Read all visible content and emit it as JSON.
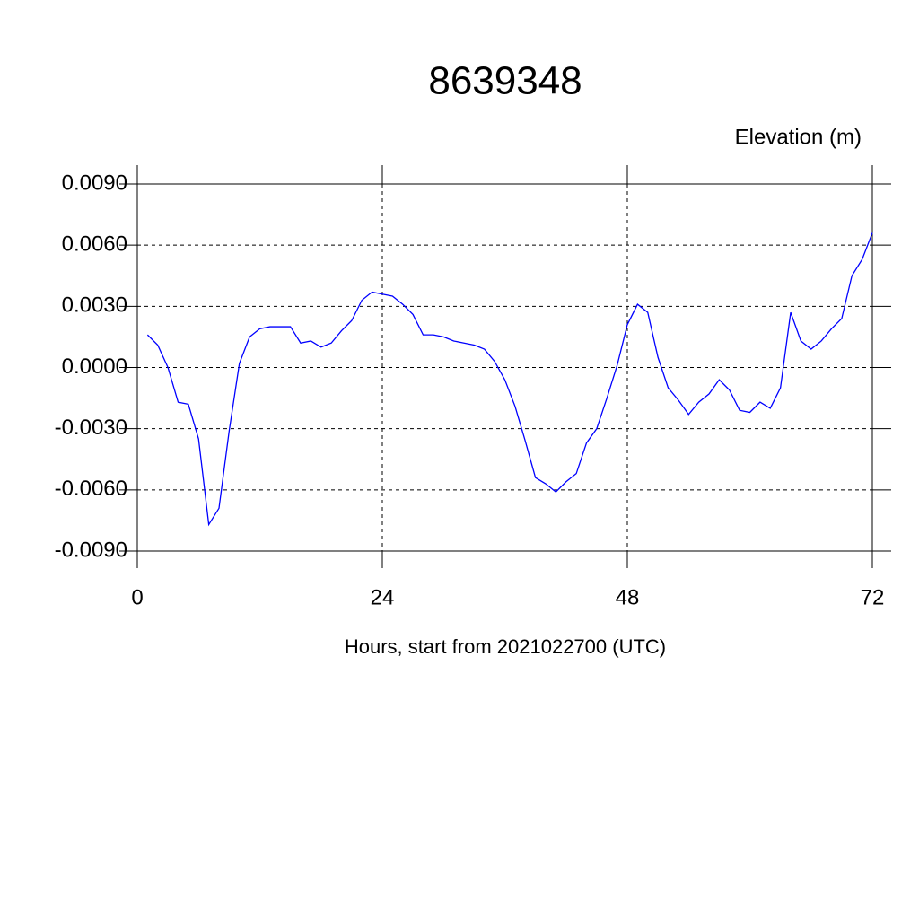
{
  "chart_data": {
    "type": "line",
    "title": "8639348",
    "subtitle": "Elevation (m)",
    "x_label": "Hours, start from 2021022700 (UTC)",
    "x": [
      1,
      2,
      3,
      4,
      5,
      6,
      7,
      8,
      9,
      10,
      11,
      12,
      13,
      14,
      15,
      16,
      17,
      18,
      19,
      20,
      21,
      22,
      23,
      24,
      25,
      26,
      27,
      28,
      29,
      30,
      31,
      32,
      33,
      34,
      35,
      36,
      37,
      38,
      39,
      40,
      41,
      42,
      43,
      44,
      45,
      46,
      47,
      48,
      49,
      50,
      51,
      52,
      53,
      54,
      55,
      56,
      57,
      58,
      59,
      60,
      61,
      62,
      63,
      64,
      65,
      66,
      67,
      68,
      69,
      70,
      71,
      72
    ],
    "series": [
      {
        "name": "Elevation",
        "color": "#0000ff",
        "values": [
          0.0016,
          0.0011,
          0.0,
          -0.0017,
          -0.0018,
          -0.0035,
          -0.0077,
          -0.0069,
          -0.0031,
          0.0002,
          0.0015,
          0.0019,
          0.002,
          0.002,
          0.002,
          0.0012,
          0.0013,
          0.001,
          0.0012,
          0.0018,
          0.0023,
          0.0033,
          0.0037,
          0.0036,
          0.0035,
          0.0031,
          0.0026,
          0.0016,
          0.0016,
          0.0015,
          0.0013,
          0.0012,
          0.0011,
          0.0009,
          0.0003,
          -0.0006,
          -0.0019,
          -0.0036,
          -0.0054,
          -0.0057,
          -0.0061,
          -0.0056,
          -0.0052,
          -0.0037,
          -0.003,
          -0.0015,
          0.0001,
          0.0021,
          0.0031,
          0.0027,
          0.0005,
          -0.001,
          -0.0016,
          -0.0023,
          -0.0017,
          -0.0013,
          -0.0006,
          -0.0011,
          -0.0021,
          -0.0022,
          -0.0017,
          -0.002,
          -0.001,
          0.0027,
          0.0013,
          0.0009,
          0.0013,
          0.0019,
          0.0024,
          0.0045,
          0.0053,
          0.0066
        ]
      }
    ],
    "xlim": [
      0,
      72
    ],
    "xticks": [
      0,
      24,
      48,
      72
    ],
    "ylim": [
      -0.009,
      0.009
    ],
    "yticks": [
      {
        "value": -0.009,
        "label": "-0.0090"
      },
      {
        "value": -0.006,
        "label": "-0.0060"
      },
      {
        "value": -0.003,
        "label": "-0.0030"
      },
      {
        "value": 0,
        "label": "0.0000"
      },
      {
        "value": 0.003,
        "label": "0.0030"
      },
      {
        "value": 0.006,
        "label": "0.0060"
      },
      {
        "value": 0.009,
        "label": "0.0090"
      }
    ],
    "grid": true
  }
}
